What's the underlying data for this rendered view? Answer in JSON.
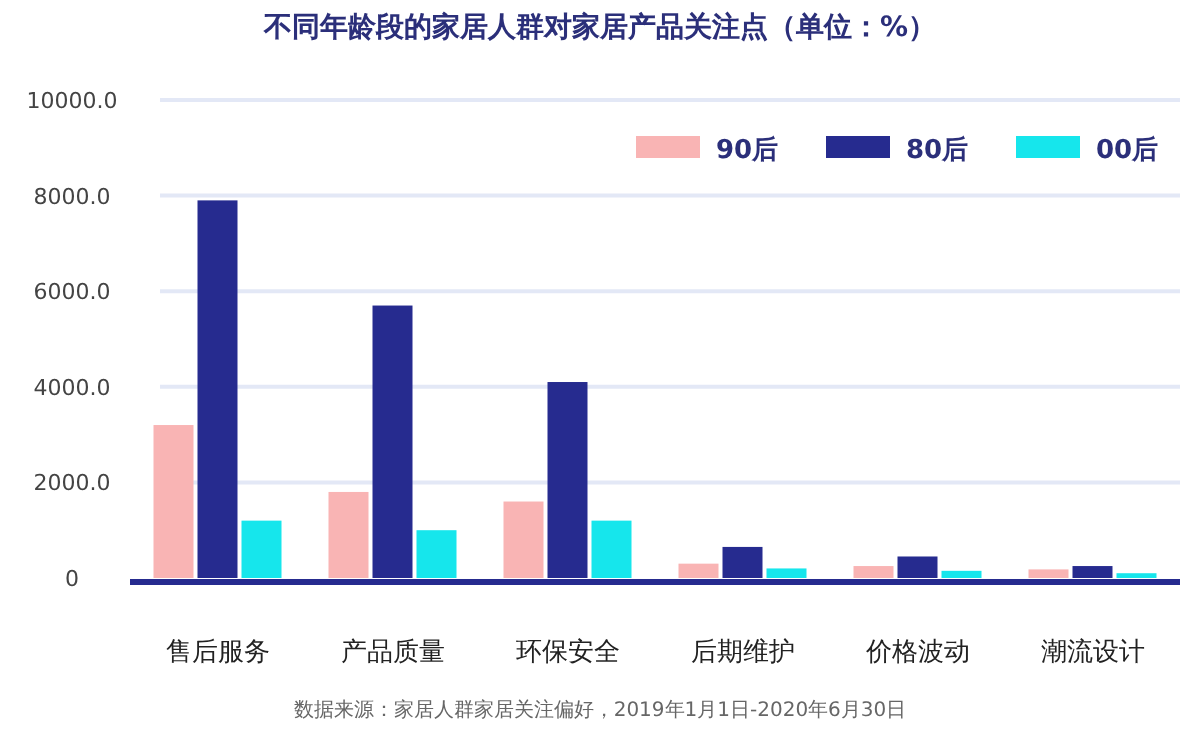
{
  "chart_data": {
    "type": "bar",
    "title": "不同年龄段的家居人群对家居产品关注点（单位：%）",
    "categories": [
      "售后服务",
      "产品质量",
      "环保安全",
      "后期维护",
      "价格波动",
      "潮流设计"
    ],
    "series": [
      {
        "name": "90后",
        "color": "#f9b4b4",
        "values": [
          3200,
          1800,
          1600,
          300,
          250,
          180
        ]
      },
      {
        "name": "80后",
        "color": "#262b8f",
        "values": [
          7900,
          5700,
          4100,
          650,
          450,
          250
        ]
      },
      {
        "name": "00后",
        "color": "#16e6ec",
        "values": [
          1200,
          1000,
          1200,
          200,
          150,
          100
        ]
      }
    ],
    "ylim": [
      0,
      10000
    ],
    "yticks": [
      0,
      {
        "value": 2000,
        "label": "2000.0"
      },
      {
        "value": 4000,
        "label": "4000.0"
      },
      {
        "value": 6000,
        "label": "6000.0"
      },
      {
        "value": 8000,
        "label": "8000.0"
      },
      {
        "value": 10000,
        "label": "10000.0"
      }
    ],
    "grid": "y",
    "legend": "top right",
    "annotations": [
      "数据来源：家居人群家居关注偏好，2019年1月1日-2020年6月30日"
    ]
  }
}
